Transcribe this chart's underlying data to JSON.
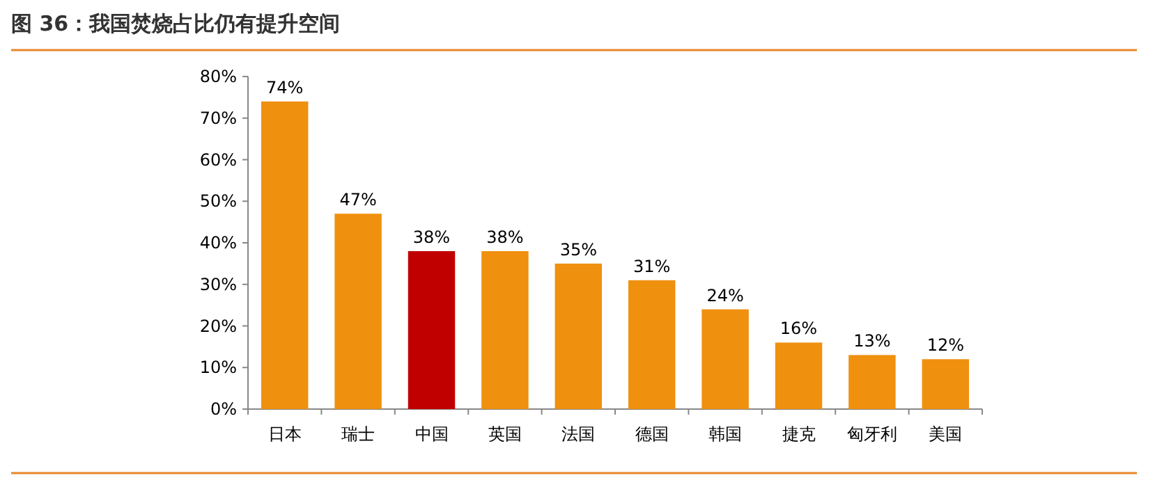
{
  "chart_data": {
    "type": "bar",
    "title": "图 36：我国焚烧占比仍有提升空间",
    "categories": [
      "日本",
      "瑞士",
      "中国",
      "英国",
      "法国",
      "德国",
      "韩国",
      "捷克",
      "匈牙利",
      "美国"
    ],
    "values": [
      74,
      47,
      38,
      38,
      35,
      31,
      24,
      16,
      13,
      12
    ],
    "colors": [
      "#f0900f",
      "#f0900f",
      "#c00000",
      "#f0900f",
      "#f0900f",
      "#f0900f",
      "#f0900f",
      "#f0900f",
      "#f0900f",
      "#f0900f"
    ],
    "value_labels": [
      "74%",
      "47%",
      "38%",
      "38%",
      "35%",
      "31%",
      "24%",
      "16%",
      "13%",
      "12%"
    ],
    "ylim": [
      0,
      80
    ],
    "yticks": [
      {
        "value": 0,
        "label": "0%"
      },
      {
        "value": 10,
        "label": "10%"
      },
      {
        "value": 20,
        "label": "20%"
      },
      {
        "value": 30,
        "label": "30%"
      },
      {
        "value": 40,
        "label": "40%"
      },
      {
        "value": 50,
        "label": "50%"
      },
      {
        "value": 60,
        "label": "60%"
      },
      {
        "value": 70,
        "label": "70%"
      },
      {
        "value": 80,
        "label": "80%"
      }
    ],
    "grid": false
  }
}
